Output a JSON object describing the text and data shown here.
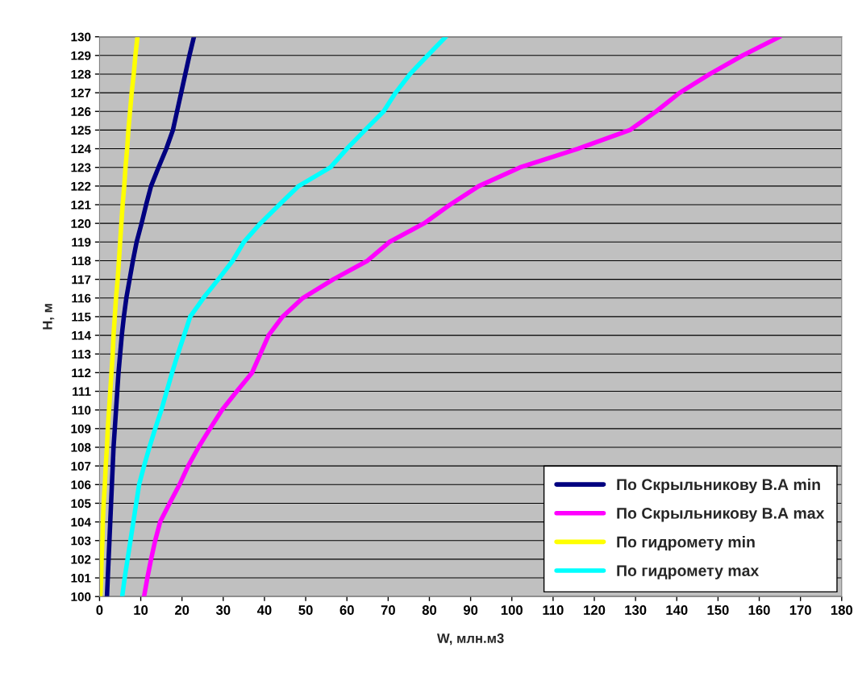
{
  "chart_data": {
    "type": "line",
    "xlabel": "W, млн.м3",
    "ylabel": "H, м",
    "series": [
      {
        "name": "По Скрыльникову В.А min",
        "color": "#000080",
        "x": [
          1.8,
          2.0,
          2.2,
          2.4,
          2.6,
          2.8,
          3.0,
          3.2,
          3.4,
          3.7,
          4.0,
          4.3,
          4.6,
          5.0,
          5.4,
          5.9,
          6.5,
          7.3,
          8.1,
          9.0,
          10.2,
          11.3,
          12.5,
          14.3,
          16.2,
          17.8,
          18.8,
          19.8,
          20.8,
          21.8,
          22.9
        ],
        "values": [
          100,
          101,
          102,
          103,
          104,
          105,
          106,
          107,
          108,
          109,
          110,
          111,
          112,
          113,
          114,
          115,
          116,
          117,
          118,
          119,
          120,
          121,
          122,
          123,
          124,
          125,
          126,
          127,
          128,
          129,
          130
        ]
      },
      {
        "name": "По Скрыльникову В.А max",
        "color": "#ff00ff",
        "x": [
          10.8,
          11.6,
          12.5,
          13.5,
          14.7,
          17.0,
          19.4,
          21.5,
          24.0,
          26.8,
          29.7,
          33.3,
          37.0,
          39.0,
          41.0,
          44.4,
          49.3,
          56.7,
          65.0,
          70.3,
          78.7,
          85.0,
          92.0,
          102.0,
          116.0,
          128.6,
          135.0,
          140.7,
          148.0,
          156.0,
          165.0
        ],
        "values": [
          100,
          101,
          102,
          103,
          104,
          105,
          106,
          107,
          108,
          109,
          110,
          111,
          112,
          113,
          114,
          115,
          116,
          117,
          118,
          119,
          120,
          121,
          122,
          123,
          124,
          125,
          126,
          127,
          128,
          129,
          130
        ]
      },
      {
        "name": "По гидромету min",
        "color": "#ffff00",
        "x": [
          0.2,
          0.4,
          0.5,
          0.7,
          0.8,
          1.0,
          1.3,
          1.5,
          1.8,
          2.0,
          2.3,
          2.6,
          2.9,
          3.2,
          3.4,
          3.7,
          4.0,
          4.4,
          4.7,
          5.0,
          5.3,
          5.6,
          6.0,
          6.3,
          6.7,
          7.0,
          7.4,
          7.8,
          8.3,
          8.7,
          9.2
        ],
        "values": [
          100,
          101,
          102,
          103,
          104,
          105,
          106,
          107,
          108,
          109,
          110,
          111,
          112,
          113,
          114,
          115,
          116,
          117,
          118,
          119,
          120,
          121,
          122,
          123,
          124,
          125,
          126,
          127,
          128,
          129,
          130
        ]
      },
      {
        "name": "По гидромету max",
        "color": "#00ffff",
        "x": [
          5.5,
          6.1,
          6.8,
          7.5,
          8.2,
          8.9,
          9.6,
          10.8,
          12.1,
          13.5,
          15.0,
          16.3,
          17.6,
          19.0,
          20.5,
          22.0,
          25.2,
          28.8,
          32.3,
          35.0,
          39.0,
          43.6,
          48.3,
          56.0,
          60.0,
          64.4,
          68.9,
          71.8,
          75.3,
          79.6,
          84.0
        ],
        "values": [
          100,
          101,
          102,
          103,
          104,
          105,
          106,
          107,
          108,
          109,
          110,
          111,
          112,
          113,
          114,
          115,
          116,
          117,
          118,
          119,
          120,
          121,
          122,
          123,
          124,
          125,
          126,
          127,
          128,
          129,
          130
        ]
      }
    ],
    "xlim": [
      0,
      180
    ],
    "xticks": [
      0,
      10,
      20,
      30,
      40,
      50,
      60,
      70,
      80,
      90,
      100,
      110,
      120,
      130,
      140,
      150,
      160,
      170,
      180
    ],
    "ylim": [
      100,
      130
    ],
    "yticks": [
      100,
      101,
      102,
      103,
      104,
      105,
      106,
      107,
      108,
      109,
      110,
      111,
      112,
      113,
      114,
      115,
      116,
      117,
      118,
      119,
      120,
      121,
      122,
      123,
      124,
      125,
      126,
      127,
      128,
      129,
      130
    ],
    "grid": "y",
    "legend": "bottom right",
    "marker": "none",
    "line_style": "solid"
  }
}
